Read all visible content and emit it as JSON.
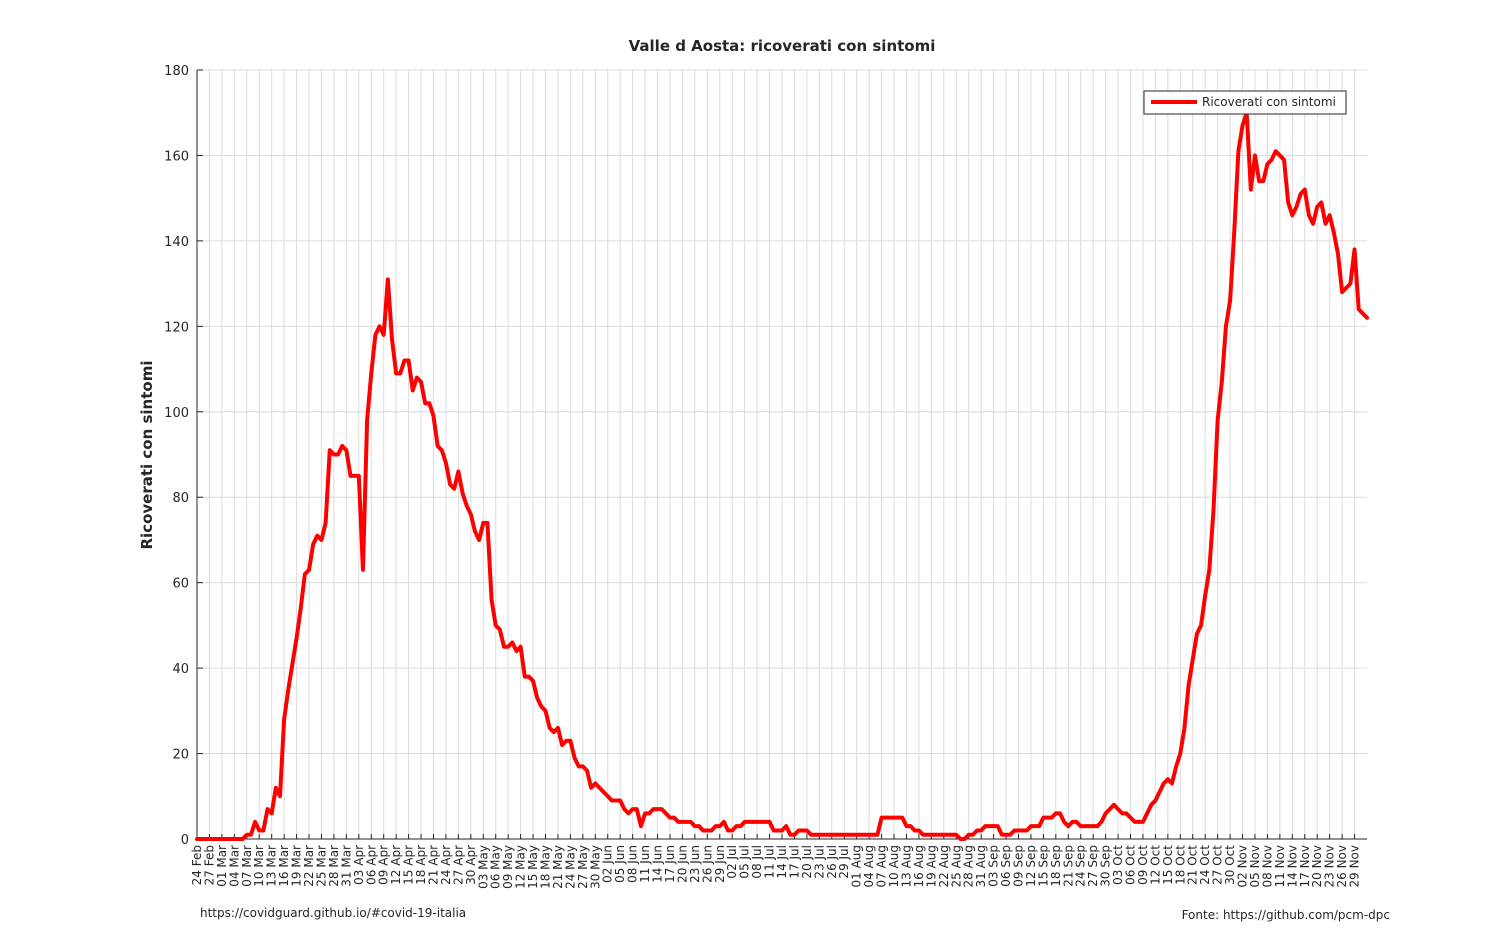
{
  "footer": {
    "left": "https://covidguard.github.io/#covid-19-italia",
    "right": "Fonte: https://github.com/pcm-dpc"
  },
  "chart_data": {
    "type": "line",
    "title": "Valle d Aosta: ricoverati con sintomi",
    "xlabel": "",
    "ylabel": "Ricoverati con sintomi",
    "ylim": [
      0,
      180
    ],
    "yticks": [
      0,
      20,
      40,
      60,
      80,
      100,
      120,
      140,
      160,
      180
    ],
    "grid": true,
    "legend_position": "top-right",
    "line_color": "#ff0000",
    "x_start": "2020-02-24",
    "x_end": "2020-12-02",
    "xtick_labels": [
      "24 Feb",
      "27 Feb",
      "01 Mar",
      "04 Mar",
      "07 Mar",
      "10 Mar",
      "13 Mar",
      "16 Mar",
      "19 Mar",
      "22 Mar",
      "25 Mar",
      "28 Mar",
      "31 Mar",
      "03 Apr",
      "06 Apr",
      "09 Apr",
      "12 Apr",
      "15 Apr",
      "18 Apr",
      "21 Apr",
      "24 Apr",
      "27 Apr",
      "30 Apr",
      "03 May",
      "06 May",
      "09 May",
      "12 May",
      "15 May",
      "18 May",
      "21 May",
      "24 May",
      "27 May",
      "30 May",
      "02 Jun",
      "05 Jun",
      "08 Jun",
      "11 Jun",
      "14 Jun",
      "17 Jun",
      "20 Jun",
      "23 Jun",
      "26 Jun",
      "29 Jun",
      "02 Jul",
      "05 Jul",
      "08 Jul",
      "11 Jul",
      "14 Jul",
      "17 Jul",
      "20 Jul",
      "23 Jul",
      "26 Jul",
      "29 Jul",
      "01 Aug",
      "04 Aug",
      "07 Aug",
      "10 Aug",
      "13 Aug",
      "16 Aug",
      "19 Aug",
      "22 Aug",
      "25 Aug",
      "28 Aug",
      "31 Aug",
      "03 Sep",
      "06 Sep",
      "09 Sep",
      "12 Sep",
      "15 Sep",
      "18 Sep",
      "21 Sep",
      "24 Sep",
      "27 Sep",
      "30 Sep",
      "03 Oct",
      "06 Oct",
      "09 Oct",
      "12 Oct",
      "15 Oct",
      "18 Oct",
      "21 Oct",
      "24 Oct",
      "27 Oct",
      "30 Oct",
      "02 Nov",
      "05 Nov",
      "08 Nov",
      "11 Nov",
      "14 Nov",
      "17 Nov",
      "20 Nov",
      "23 Nov",
      "26 Nov",
      "29 Nov"
    ],
    "series": [
      {
        "name": "Ricoverati con sintomi",
        "points": [
          [
            "2020-02-24",
            0
          ],
          [
            "2020-03-06",
            0
          ],
          [
            "2020-03-07",
            1
          ],
          [
            "2020-03-08",
            1
          ],
          [
            "2020-03-09",
            4
          ],
          [
            "2020-03-10",
            2
          ],
          [
            "2020-03-11",
            2
          ],
          [
            "2020-03-12",
            7
          ],
          [
            "2020-03-13",
            6
          ],
          [
            "2020-03-14",
            12
          ],
          [
            "2020-03-15",
            10
          ],
          [
            "2020-03-16",
            28
          ],
          [
            "2020-03-17",
            35
          ],
          [
            "2020-03-18",
            41
          ],
          [
            "2020-03-19",
            47
          ],
          [
            "2020-03-20",
            54
          ],
          [
            "2020-03-21",
            62
          ],
          [
            "2020-03-22",
            63
          ],
          [
            "2020-03-23",
            69
          ],
          [
            "2020-03-24",
            71
          ],
          [
            "2020-03-25",
            70
          ],
          [
            "2020-03-26",
            74
          ],
          [
            "2020-03-27",
            91
          ],
          [
            "2020-03-28",
            90
          ],
          [
            "2020-03-29",
            90
          ],
          [
            "2020-03-30",
            92
          ],
          [
            "2020-03-31",
            91
          ],
          [
            "2020-04-01",
            85
          ],
          [
            "2020-04-02",
            85
          ],
          [
            "2020-04-03",
            85
          ],
          [
            "2020-04-04",
            63
          ],
          [
            "2020-04-05",
            98
          ],
          [
            "2020-04-06",
            109
          ],
          [
            "2020-04-07",
            118
          ],
          [
            "2020-04-08",
            120
          ],
          [
            "2020-04-09",
            118
          ],
          [
            "2020-04-10",
            131
          ],
          [
            "2020-04-11",
            117
          ],
          [
            "2020-04-12",
            109
          ],
          [
            "2020-04-13",
            109
          ],
          [
            "2020-04-14",
            112
          ],
          [
            "2020-04-15",
            112
          ],
          [
            "2020-04-16",
            105
          ],
          [
            "2020-04-17",
            108
          ],
          [
            "2020-04-18",
            107
          ],
          [
            "2020-04-19",
            102
          ],
          [
            "2020-04-20",
            102
          ],
          [
            "2020-04-21",
            99
          ],
          [
            "2020-04-22",
            92
          ],
          [
            "2020-04-23",
            91
          ],
          [
            "2020-04-24",
            88
          ],
          [
            "2020-04-25",
            83
          ],
          [
            "2020-04-26",
            82
          ],
          [
            "2020-04-27",
            86
          ],
          [
            "2020-04-28",
            81
          ],
          [
            "2020-04-29",
            78
          ],
          [
            "2020-04-30",
            76
          ],
          [
            "2020-05-01",
            72
          ],
          [
            "2020-05-02",
            70
          ],
          [
            "2020-05-03",
            74
          ],
          [
            "2020-05-04",
            74
          ],
          [
            "2020-05-05",
            56
          ],
          [
            "2020-05-06",
            50
          ],
          [
            "2020-05-07",
            49
          ],
          [
            "2020-05-08",
            45
          ],
          [
            "2020-05-09",
            45
          ],
          [
            "2020-05-10",
            46
          ],
          [
            "2020-05-11",
            44
          ],
          [
            "2020-05-12",
            45
          ],
          [
            "2020-05-13",
            38
          ],
          [
            "2020-05-14",
            38
          ],
          [
            "2020-05-15",
            37
          ],
          [
            "2020-05-16",
            33
          ],
          [
            "2020-05-17",
            31
          ],
          [
            "2020-05-18",
            30
          ],
          [
            "2020-05-19",
            26
          ],
          [
            "2020-05-20",
            25
          ],
          [
            "2020-05-21",
            26
          ],
          [
            "2020-05-22",
            22
          ],
          [
            "2020-05-23",
            23
          ],
          [
            "2020-05-24",
            23
          ],
          [
            "2020-05-25",
            19
          ],
          [
            "2020-05-26",
            17
          ],
          [
            "2020-05-27",
            17
          ],
          [
            "2020-05-28",
            16
          ],
          [
            "2020-05-29",
            12
          ],
          [
            "2020-05-30",
            13
          ],
          [
            "2020-05-31",
            12
          ],
          [
            "2020-06-01",
            11
          ],
          [
            "2020-06-02",
            10
          ],
          [
            "2020-06-03",
            9
          ],
          [
            "2020-06-04",
            9
          ],
          [
            "2020-06-05",
            9
          ],
          [
            "2020-06-06",
            7
          ],
          [
            "2020-06-07",
            6
          ],
          [
            "2020-06-08",
            7
          ],
          [
            "2020-06-09",
            7
          ],
          [
            "2020-06-10",
            3
          ],
          [
            "2020-06-11",
            6
          ],
          [
            "2020-06-12",
            6
          ],
          [
            "2020-06-13",
            7
          ],
          [
            "2020-06-14",
            7
          ],
          [
            "2020-06-15",
            7
          ],
          [
            "2020-06-16",
            6
          ],
          [
            "2020-06-17",
            5
          ],
          [
            "2020-06-18",
            5
          ],
          [
            "2020-06-19",
            4
          ],
          [
            "2020-06-20",
            4
          ],
          [
            "2020-06-21",
            4
          ],
          [
            "2020-06-22",
            4
          ],
          [
            "2020-06-23",
            3
          ],
          [
            "2020-06-24",
            3
          ],
          [
            "2020-06-25",
            2
          ],
          [
            "2020-06-26",
            2
          ],
          [
            "2020-06-27",
            2
          ],
          [
            "2020-06-28",
            3
          ],
          [
            "2020-06-29",
            3
          ],
          [
            "2020-06-30",
            4
          ],
          [
            "2020-07-01",
            2
          ],
          [
            "2020-07-02",
            2
          ],
          [
            "2020-07-03",
            3
          ],
          [
            "2020-07-04",
            3
          ],
          [
            "2020-07-05",
            4
          ],
          [
            "2020-07-06",
            4
          ],
          [
            "2020-07-07",
            4
          ],
          [
            "2020-07-08",
            4
          ],
          [
            "2020-07-09",
            4
          ],
          [
            "2020-07-10",
            4
          ],
          [
            "2020-07-11",
            4
          ],
          [
            "2020-07-12",
            2
          ],
          [
            "2020-07-13",
            2
          ],
          [
            "2020-07-14",
            2
          ],
          [
            "2020-07-15",
            3
          ],
          [
            "2020-07-16",
            1
          ],
          [
            "2020-07-17",
            1
          ],
          [
            "2020-07-18",
            2
          ],
          [
            "2020-07-19",
            2
          ],
          [
            "2020-07-20",
            2
          ],
          [
            "2020-07-21",
            1
          ],
          [
            "2020-08-06",
            1
          ],
          [
            "2020-08-07",
            5
          ],
          [
            "2020-08-08",
            5
          ],
          [
            "2020-08-09",
            5
          ],
          [
            "2020-08-10",
            5
          ],
          [
            "2020-08-11",
            5
          ],
          [
            "2020-08-12",
            5
          ],
          [
            "2020-08-13",
            3
          ],
          [
            "2020-08-14",
            3
          ],
          [
            "2020-08-15",
            2
          ],
          [
            "2020-08-16",
            2
          ],
          [
            "2020-08-17",
            1
          ],
          [
            "2020-08-25",
            1
          ],
          [
            "2020-08-26",
            0
          ],
          [
            "2020-08-27",
            0
          ],
          [
            "2020-08-28",
            1
          ],
          [
            "2020-08-29",
            1
          ],
          [
            "2020-08-30",
            2
          ],
          [
            "2020-08-31",
            2
          ],
          [
            "2020-09-01",
            3
          ],
          [
            "2020-09-02",
            3
          ],
          [
            "2020-09-03",
            3
          ],
          [
            "2020-09-04",
            3
          ],
          [
            "2020-09-05",
            1
          ],
          [
            "2020-09-06",
            1
          ],
          [
            "2020-09-07",
            1
          ],
          [
            "2020-09-08",
            2
          ],
          [
            "2020-09-09",
            2
          ],
          [
            "2020-09-10",
            2
          ],
          [
            "2020-09-11",
            2
          ],
          [
            "2020-09-12",
            3
          ],
          [
            "2020-09-13",
            3
          ],
          [
            "2020-09-14",
            3
          ],
          [
            "2020-09-15",
            5
          ],
          [
            "2020-09-16",
            5
          ],
          [
            "2020-09-17",
            5
          ],
          [
            "2020-09-18",
            6
          ],
          [
            "2020-09-19",
            6
          ],
          [
            "2020-09-20",
            4
          ],
          [
            "2020-09-21",
            3
          ],
          [
            "2020-09-22",
            4
          ],
          [
            "2020-09-23",
            4
          ],
          [
            "2020-09-24",
            3
          ],
          [
            "2020-09-25",
            3
          ],
          [
            "2020-09-26",
            3
          ],
          [
            "2020-09-27",
            3
          ],
          [
            "2020-09-28",
            3
          ],
          [
            "2020-09-29",
            4
          ],
          [
            "2020-09-30",
            6
          ],
          [
            "2020-10-01",
            7
          ],
          [
            "2020-10-02",
            8
          ],
          [
            "2020-10-03",
            7
          ],
          [
            "2020-10-04",
            6
          ],
          [
            "2020-10-05",
            6
          ],
          [
            "2020-10-06",
            5
          ],
          [
            "2020-10-07",
            4
          ],
          [
            "2020-10-08",
            4
          ],
          [
            "2020-10-09",
            4
          ],
          [
            "2020-10-10",
            6
          ],
          [
            "2020-10-11",
            8
          ],
          [
            "2020-10-12",
            9
          ],
          [
            "2020-10-13",
            11
          ],
          [
            "2020-10-14",
            13
          ],
          [
            "2020-10-15",
            14
          ],
          [
            "2020-10-16",
            13
          ],
          [
            "2020-10-17",
            17
          ],
          [
            "2020-10-18",
            20
          ],
          [
            "2020-10-19",
            26
          ],
          [
            "2020-10-20",
            36
          ],
          [
            "2020-10-21",
            42
          ],
          [
            "2020-10-22",
            48
          ],
          [
            "2020-10-23",
            50
          ],
          [
            "2020-10-24",
            57
          ],
          [
            "2020-10-25",
            63
          ],
          [
            "2020-10-26",
            77
          ],
          [
            "2020-10-27",
            98
          ],
          [
            "2020-10-28",
            107
          ],
          [
            "2020-10-29",
            120
          ],
          [
            "2020-10-30",
            126
          ],
          [
            "2020-10-31",
            142
          ],
          [
            "2020-11-01",
            161
          ],
          [
            "2020-11-02",
            167
          ],
          [
            "2020-11-03",
            170
          ],
          [
            "2020-11-04",
            152
          ],
          [
            "2020-11-05",
            160
          ],
          [
            "2020-11-06",
            154
          ],
          [
            "2020-11-07",
            154
          ],
          [
            "2020-11-08",
            158
          ],
          [
            "2020-11-09",
            159
          ],
          [
            "2020-11-10",
            161
          ],
          [
            "2020-11-11",
            160
          ],
          [
            "2020-11-12",
            159
          ],
          [
            "2020-11-13",
            149
          ],
          [
            "2020-11-14",
            146
          ],
          [
            "2020-11-15",
            148
          ],
          [
            "2020-11-16",
            151
          ],
          [
            "2020-11-17",
            152
          ],
          [
            "2020-11-18",
            146
          ],
          [
            "2020-11-19",
            144
          ],
          [
            "2020-11-20",
            148
          ],
          [
            "2020-11-21",
            149
          ],
          [
            "2020-11-22",
            144
          ],
          [
            "2020-11-23",
            146
          ],
          [
            "2020-11-24",
            142
          ],
          [
            "2020-11-25",
            137
          ],
          [
            "2020-11-26",
            128
          ],
          [
            "2020-11-27",
            129
          ],
          [
            "2020-11-28",
            130
          ],
          [
            "2020-11-29",
            138
          ],
          [
            "2020-11-30",
            124
          ],
          [
            "2020-12-01",
            123
          ],
          [
            "2020-12-02",
            122
          ]
        ]
      }
    ]
  }
}
